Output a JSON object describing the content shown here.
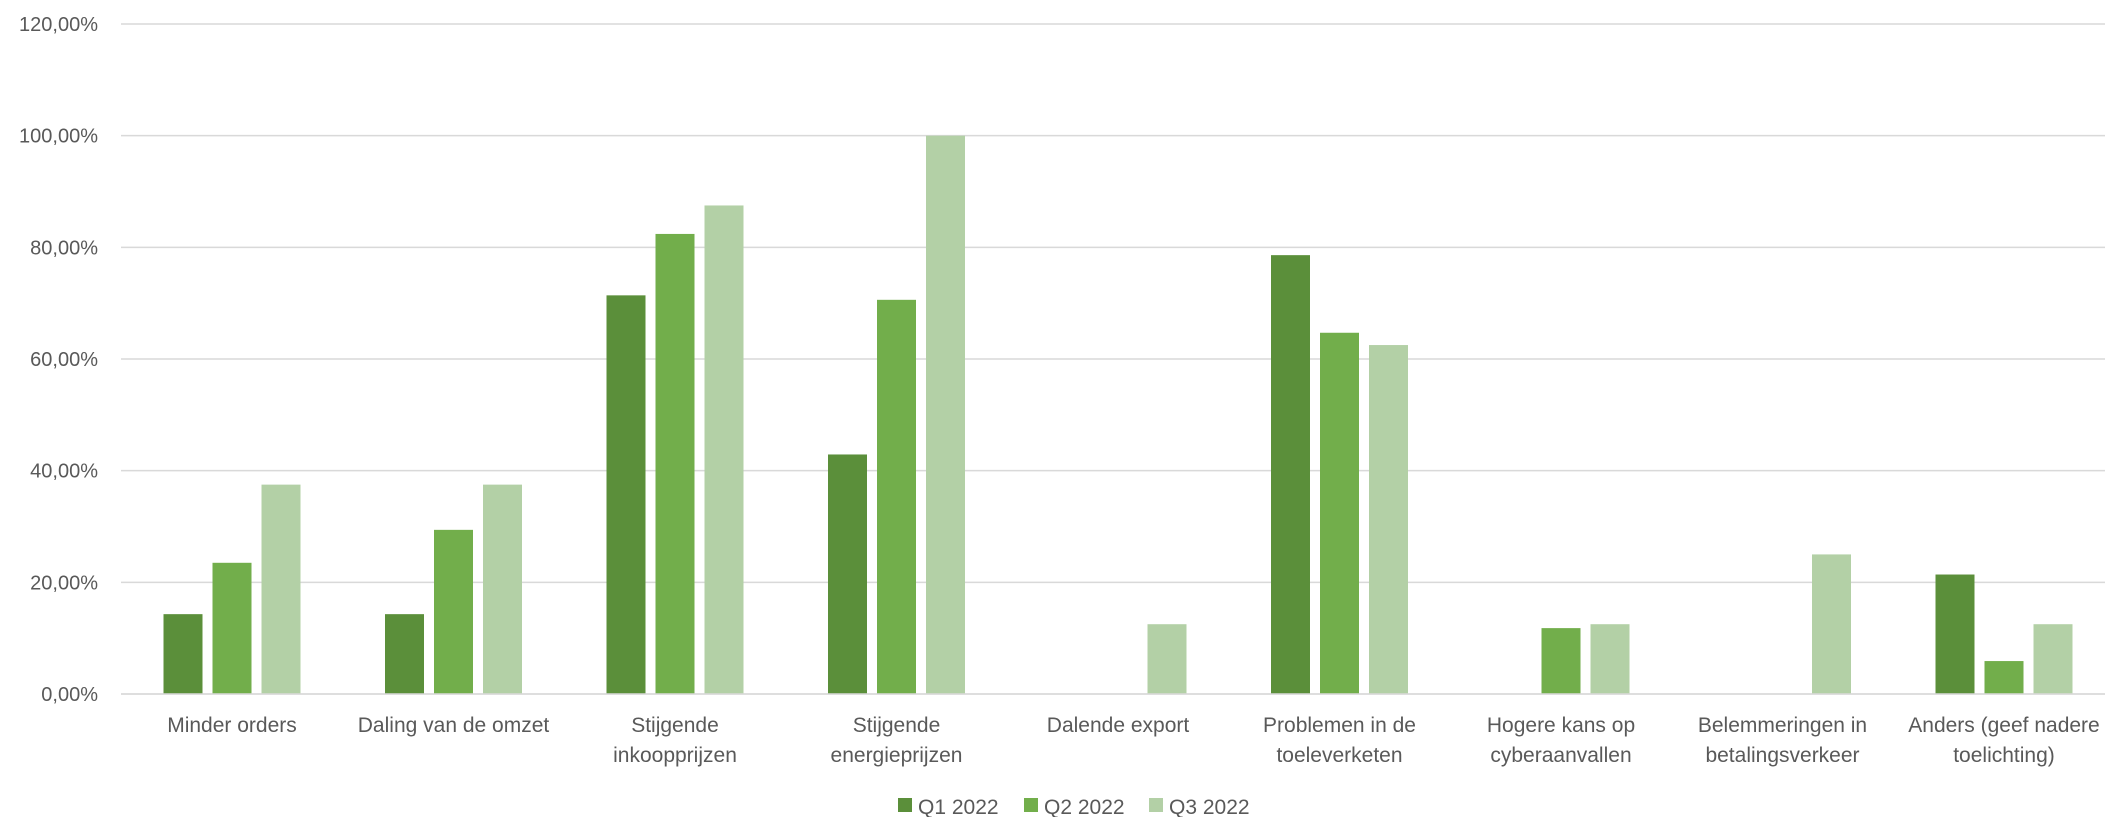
{
  "chart_data": {
    "type": "bar",
    "title": "",
    "xlabel": "",
    "ylabel": "",
    "ylim": [
      0,
      1.2
    ],
    "ytick_labels": [
      "0,00%",
      "20,00%",
      "40,00%",
      "60,00%",
      "80,00%",
      "100,00%",
      "120,00%"
    ],
    "grid": true,
    "legend_position": "bottom",
    "categories": [
      [
        "Minder orders"
      ],
      [
        "Daling van de omzet"
      ],
      [
        "Stijgende",
        "inkoopprijzen"
      ],
      [
        "Stijgende",
        "energieprijzen"
      ],
      [
        "Dalende export"
      ],
      [
        "Problemen in de",
        "toeleverketen"
      ],
      [
        "Hogere kans op",
        "cyberaanvallen"
      ],
      [
        "Belemmeringen in",
        "betalingsverkeer"
      ],
      [
        "Anders (geef nadere",
        "toelichting)"
      ]
    ],
    "series": [
      {
        "name": "Q1 2022",
        "color": "#5b8f3a",
        "values": [
          0.143,
          0.143,
          0.714,
          0.429,
          0.0,
          0.786,
          0.0,
          0.0,
          0.214
        ]
      },
      {
        "name": "Q2 2022",
        "color": "#72ae4b",
        "values": [
          0.235,
          0.294,
          0.824,
          0.706,
          0.0,
          0.647,
          0.118,
          0.0,
          0.059
        ]
      },
      {
        "name": "Q3 2022",
        "color": "#b3d0a6",
        "values": [
          0.375,
          0.375,
          0.875,
          1.0,
          0.125,
          0.625,
          0.125,
          0.25,
          0.125
        ]
      }
    ]
  }
}
